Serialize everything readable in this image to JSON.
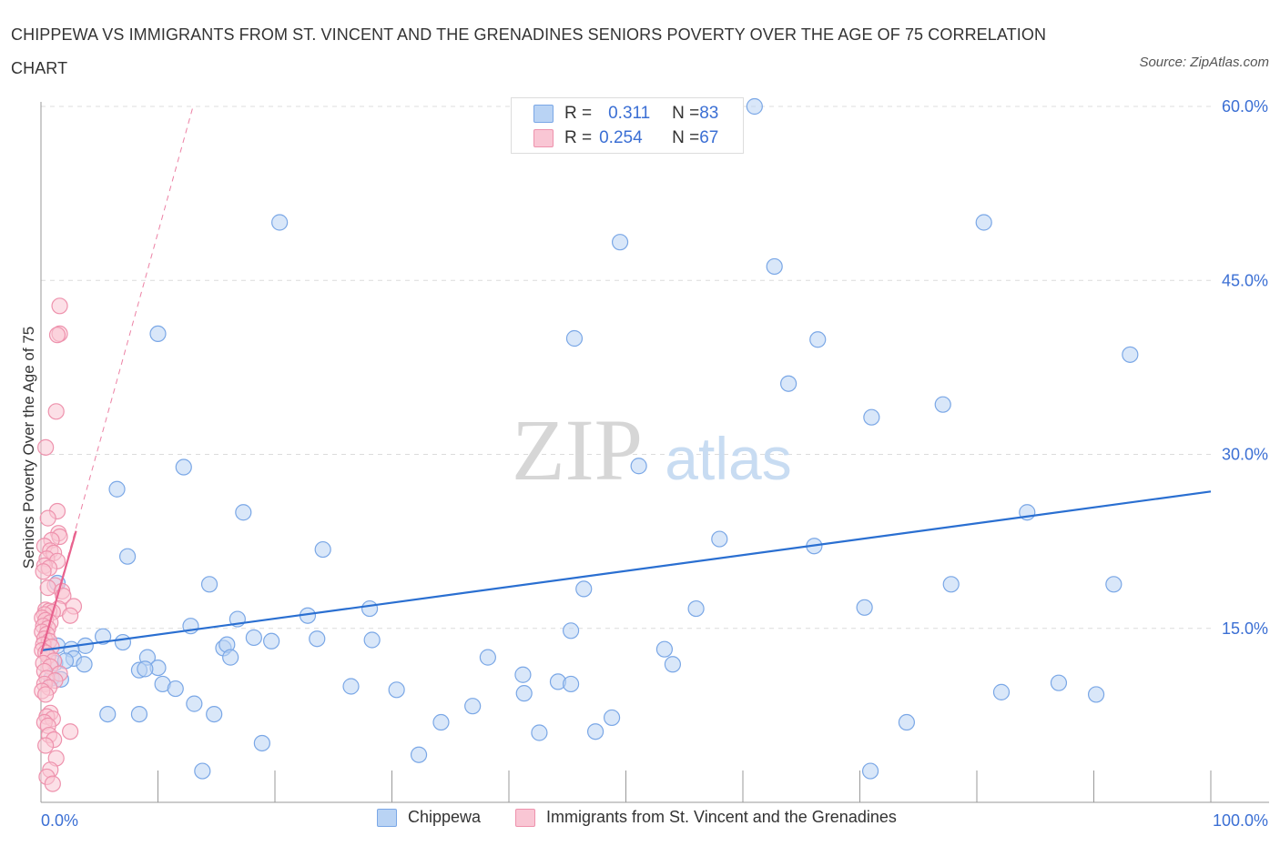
{
  "title": "CHIPPEWA VS IMMIGRANTS FROM ST. VINCENT AND THE GRENADINES SENIORS POVERTY OVER THE AGE OF 75 CORRELATION CHART",
  "source": "Source: ZipAtlas.com",
  "watermark": {
    "zip": "ZIP",
    "atlas": "atlas"
  },
  "colors": {
    "blue_fill": "#b9d3f4",
    "blue_stroke": "#7aa7e6",
    "blue_line": "#2a6fd1",
    "pink_fill": "#f9c6d4",
    "pink_stroke": "#ee92ad",
    "pink_line": "#e8628e",
    "tick_text": "#3b6fd4",
    "grid": "#dcdcdc"
  },
  "legend": {
    "rows": [
      {
        "r_label": "R = ",
        "r_value": "0.311",
        "n_label": "N = ",
        "n_value": "83",
        "color": "#b9d3f4"
      },
      {
        "r_label": "R = ",
        "r_value": "0.254",
        "n_label": "N = ",
        "n_value": "67",
        "color": "#f9c6d4"
      }
    ]
  },
  "bottom_legend": [
    {
      "label": "Chippewa",
      "color": "#b9d3f4"
    },
    {
      "label": "Immigrants from St. Vincent and the Grenadines",
      "color": "#f9c6d4"
    }
  ],
  "chart_data": {
    "type": "scatter",
    "title": "CHIPPEWA VS IMMIGRANTS FROM ST. VINCENT AND THE GRENADINES SENIORS POVERTY OVER THE AGE OF 75 CORRELATION CHART",
    "xlabel": "",
    "ylabel": "Seniors Poverty Over the Age of 75",
    "xlim": [
      0,
      100
    ],
    "ylim": [
      0,
      60
    ],
    "x_tick_labels": [
      "0.0%",
      "100.0%"
    ],
    "y_ticks": [
      15,
      30,
      45,
      60
    ],
    "y_tick_labels": [
      "15.0%",
      "30.0%",
      "45.0%",
      "60.0%"
    ],
    "grid": true,
    "series": [
      {
        "name": "Chippewa",
        "R": 0.311,
        "N": 83,
        "trend": {
          "x": [
            0,
            100
          ],
          "y": [
            13.1,
            26.8
          ],
          "style": "solid"
        },
        "points": [
          [
            61,
            60.0
          ],
          [
            20.4,
            50.0
          ],
          [
            80.6,
            50.0
          ],
          [
            49.5,
            48.3
          ],
          [
            62.7,
            46.2
          ],
          [
            10.0,
            40.4
          ],
          [
            45.6,
            40.0
          ],
          [
            66.4,
            39.9
          ],
          [
            93.1,
            38.6
          ],
          [
            63.9,
            36.1
          ],
          [
            77.1,
            34.3
          ],
          [
            71.0,
            33.2
          ],
          [
            12.2,
            28.9
          ],
          [
            51.1,
            29.0
          ],
          [
            6.5,
            27.0
          ],
          [
            17.3,
            25.0
          ],
          [
            84.3,
            25.0
          ],
          [
            58.0,
            22.7
          ],
          [
            66.1,
            22.1
          ],
          [
            24.1,
            21.8
          ],
          [
            7.4,
            21.2
          ],
          [
            1.4,
            18.9
          ],
          [
            14.4,
            18.8
          ],
          [
            77.8,
            18.8
          ],
          [
            91.7,
            18.8
          ],
          [
            46.4,
            18.4
          ],
          [
            70.4,
            16.8
          ],
          [
            56.0,
            16.7
          ],
          [
            28.1,
            16.7
          ],
          [
            16.8,
            15.8
          ],
          [
            22.8,
            16.1
          ],
          [
            12.8,
            15.2
          ],
          [
            45.3,
            14.8
          ],
          [
            5.3,
            14.3
          ],
          [
            18.2,
            14.2
          ],
          [
            23.6,
            14.1
          ],
          [
            28.3,
            14.0
          ],
          [
            19.7,
            13.9
          ],
          [
            7.0,
            13.8
          ],
          [
            1.4,
            13.5
          ],
          [
            3.8,
            13.5
          ],
          [
            2.6,
            13.2
          ],
          [
            15.6,
            13.3
          ],
          [
            15.9,
            13.6
          ],
          [
            53.3,
            13.2
          ],
          [
            9.1,
            12.5
          ],
          [
            16.2,
            12.5
          ],
          [
            38.2,
            12.5
          ],
          [
            1.2,
            12.0
          ],
          [
            2.8,
            12.4
          ],
          [
            3.7,
            11.9
          ],
          [
            10.0,
            11.6
          ],
          [
            54.0,
            11.9
          ],
          [
            8.4,
            11.4
          ],
          [
            8.9,
            11.5
          ],
          [
            41.2,
            11.0
          ],
          [
            44.2,
            10.4
          ],
          [
            45.3,
            10.2
          ],
          [
            26.5,
            10.0
          ],
          [
            10.4,
            10.2
          ],
          [
            11.5,
            9.8
          ],
          [
            30.4,
            9.7
          ],
          [
            41.3,
            9.4
          ],
          [
            82.1,
            9.5
          ],
          [
            87.0,
            10.3
          ],
          [
            90.2,
            9.3
          ],
          [
            13.1,
            8.5
          ],
          [
            36.9,
            8.3
          ],
          [
            5.7,
            7.6
          ],
          [
            8.4,
            7.6
          ],
          [
            14.8,
            7.6
          ],
          [
            34.2,
            6.9
          ],
          [
            48.8,
            7.3
          ],
          [
            74.0,
            6.9
          ],
          [
            42.6,
            6.0
          ],
          [
            47.4,
            6.1
          ],
          [
            18.9,
            5.1
          ],
          [
            32.3,
            4.1
          ],
          [
            13.8,
            2.7
          ],
          [
            70.9,
            2.7
          ],
          [
            0.9,
            10.7
          ],
          [
            1.7,
            10.6
          ],
          [
            2.1,
            12.2
          ]
        ]
      },
      {
        "name": "Immigrants from St. Vincent and the Grenadines",
        "R": 0.254,
        "N": 67,
        "trend": {
          "x": [
            0,
            3.0
          ],
          "y": [
            12.8,
            23.4
          ],
          "style": "solid",
          "extension": {
            "x": [
              0,
              13.0
            ],
            "y": [
              12.8,
              60.0
            ],
            "style": "dashed"
          }
        },
        "points": [
          [
            1.6,
            42.8
          ],
          [
            1.6,
            40.4
          ],
          [
            1.4,
            40.3
          ],
          [
            1.3,
            33.7
          ],
          [
            0.4,
            30.6
          ],
          [
            1.4,
            25.1
          ],
          [
            0.6,
            24.5
          ],
          [
            1.5,
            23.2
          ],
          [
            1.6,
            22.9
          ],
          [
            0.9,
            22.6
          ],
          [
            0.3,
            22.1
          ],
          [
            0.8,
            21.7
          ],
          [
            1.1,
            21.5
          ],
          [
            0.5,
            21.0
          ],
          [
            1.4,
            20.8
          ],
          [
            0.3,
            20.4
          ],
          [
            0.7,
            20.2
          ],
          [
            0.2,
            19.9
          ],
          [
            1.2,
            18.7
          ],
          [
            0.6,
            18.5
          ],
          [
            1.8,
            18.2
          ],
          [
            1.9,
            17.8
          ],
          [
            2.8,
            16.9
          ],
          [
            1.5,
            16.7
          ],
          [
            0.4,
            16.6
          ],
          [
            0.7,
            16.5
          ],
          [
            1.0,
            16.4
          ],
          [
            0.3,
            16.2
          ],
          [
            2.5,
            16.1
          ],
          [
            0.1,
            15.9
          ],
          [
            0.4,
            15.7
          ],
          [
            0.8,
            15.5
          ],
          [
            0.2,
            15.2
          ],
          [
            0.6,
            15.0
          ],
          [
            0.1,
            14.7
          ],
          [
            0.5,
            14.5
          ],
          [
            0.3,
            14.1
          ],
          [
            0.7,
            13.9
          ],
          [
            0.2,
            13.6
          ],
          [
            0.9,
            13.4
          ],
          [
            0.1,
            13.1
          ],
          [
            0.4,
            12.9
          ],
          [
            0.6,
            12.6
          ],
          [
            1.1,
            12.2
          ],
          [
            0.2,
            12.0
          ],
          [
            0.8,
            11.7
          ],
          [
            0.3,
            11.3
          ],
          [
            1.6,
            11.1
          ],
          [
            0.5,
            10.7
          ],
          [
            1.2,
            10.5
          ],
          [
            0.3,
            10.2
          ],
          [
            0.7,
            9.9
          ],
          [
            0.1,
            9.6
          ],
          [
            0.4,
            9.3
          ],
          [
            0.8,
            7.7
          ],
          [
            0.5,
            7.4
          ],
          [
            1.0,
            7.2
          ],
          [
            0.3,
            6.9
          ],
          [
            0.6,
            6.6
          ],
          [
            2.5,
            6.1
          ],
          [
            0.7,
            5.8
          ],
          [
            1.1,
            5.4
          ],
          [
            0.4,
            4.9
          ],
          [
            1.3,
            3.8
          ],
          [
            0.8,
            2.8
          ],
          [
            0.5,
            2.2
          ],
          [
            1.0,
            1.6
          ]
        ]
      }
    ]
  }
}
